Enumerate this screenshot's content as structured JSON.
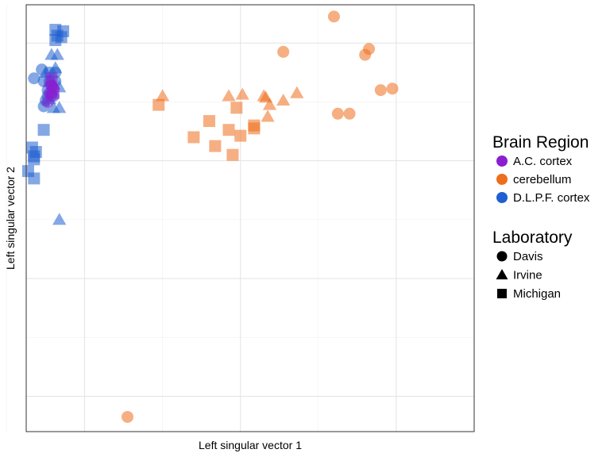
{
  "chart_data": {
    "type": "scatter",
    "xlabel": "Left singular vector 1",
    "ylabel": "Left singular vector 2",
    "x_ticks_labeled": false,
    "y_ticks_labeled": false,
    "xlim": [
      -0.35,
      0.8
    ],
    "ylim": [
      -0.72,
      0.73
    ],
    "grid": true,
    "legend_position": "right",
    "legends": {
      "color": {
        "title": "Brain Region",
        "entries": [
          {
            "label": "A.C. cortex",
            "color": "#8a1fd0"
          },
          {
            "label": "cerebellum",
            "color": "#ee6e1c"
          },
          {
            "label": "D.L.P.F. cortex",
            "color": "#1f5fcf"
          }
        ]
      },
      "shape": {
        "title": "Laboratory",
        "entries": [
          {
            "label": "Davis",
            "shape": "circle"
          },
          {
            "label": "Irvine",
            "shape": "triangle"
          },
          {
            "label": "Michigan",
            "shape": "square"
          }
        ]
      }
    },
    "series": [
      {
        "region": "cerebellum",
        "lab": "Davis",
        "points": [
          [
            0.44,
            0.69
          ],
          [
            0.53,
            0.58
          ],
          [
            0.52,
            0.56
          ],
          [
            0.31,
            0.57
          ],
          [
            0.56,
            0.44
          ],
          [
            0.59,
            0.445
          ],
          [
            0.45,
            0.36
          ],
          [
            0.48,
            0.36
          ],
          [
            -0.09,
            -0.67
          ]
        ]
      },
      {
        "region": "cerebellum",
        "lab": "Irvine",
        "points": [
          [
            0.0,
            0.42
          ],
          [
            0.17,
            0.42
          ],
          [
            0.205,
            0.425
          ],
          [
            0.26,
            0.42
          ],
          [
            0.265,
            0.415
          ],
          [
            0.275,
            0.39
          ],
          [
            0.27,
            0.35
          ],
          [
            0.31,
            0.405
          ],
          [
            0.345,
            0.43
          ]
        ]
      },
      {
        "region": "cerebellum",
        "lab": "Michigan",
        "points": [
          [
            -0.01,
            0.39
          ],
          [
            0.19,
            0.38
          ],
          [
            0.12,
            0.335
          ],
          [
            0.17,
            0.305
          ],
          [
            0.2,
            0.285
          ],
          [
            0.235,
            0.31
          ],
          [
            0.235,
            0.32
          ],
          [
            0.08,
            0.28
          ],
          [
            0.135,
            0.25
          ],
          [
            0.18,
            0.22
          ]
        ]
      },
      {
        "region": "D.L.P.F. cortex",
        "lab": "Davis",
        "points": [
          [
            -0.305,
            0.47
          ],
          [
            -0.285,
            0.455
          ],
          [
            -0.31,
            0.51
          ],
          [
            -0.29,
            0.5
          ],
          [
            -0.275,
            0.5
          ],
          [
            -0.295,
            0.44
          ],
          [
            -0.285,
            0.43
          ],
          [
            -0.3,
            0.405
          ],
          [
            -0.305,
            0.385
          ],
          [
            -0.28,
            0.42
          ],
          [
            -0.29,
            0.47
          ],
          [
            -0.33,
            0.48
          ],
          [
            -0.275,
            0.47
          ],
          [
            -0.295,
            0.42
          ]
        ]
      },
      {
        "region": "D.L.P.F. cortex",
        "lab": "Irvine",
        "points": [
          [
            -0.285,
            0.56
          ],
          [
            -0.27,
            0.56
          ],
          [
            -0.3,
            0.5
          ],
          [
            -0.275,
            0.515
          ],
          [
            -0.265,
            0.45
          ],
          [
            -0.28,
            0.38
          ],
          [
            -0.265,
            0.38
          ],
          [
            -0.29,
            0.41
          ],
          [
            -0.265,
            0.0
          ]
        ]
      },
      {
        "region": "D.L.P.F. cortex",
        "lab": "Michigan",
        "points": [
          [
            -0.275,
            0.645
          ],
          [
            -0.255,
            0.64
          ],
          [
            -0.27,
            0.625
          ],
          [
            -0.26,
            0.62
          ],
          [
            -0.275,
            0.61
          ],
          [
            -0.305,
            0.305
          ],
          [
            -0.335,
            0.245
          ],
          [
            -0.345,
            0.165
          ],
          [
            -0.33,
            0.14
          ],
          [
            -0.325,
            0.23
          ],
          [
            -0.33,
            0.215
          ],
          [
            -0.33,
            0.205
          ]
        ]
      },
      {
        "region": "A.C. cortex",
        "lab": "Davis",
        "points": [
          [
            -0.285,
            0.455
          ],
          [
            -0.29,
            0.43
          ],
          [
            -0.285,
            0.42
          ],
          [
            -0.295,
            0.4
          ],
          [
            -0.28,
            0.445
          ]
        ]
      },
      {
        "region": "A.C. cortex",
        "lab": "Irvine",
        "points": [
          [
            -0.29,
            0.47
          ],
          [
            -0.28,
            0.46
          ],
          [
            -0.285,
            0.44
          ]
        ]
      },
      {
        "region": "A.C. cortex",
        "lab": "Michigan",
        "points": [
          [
            -0.285,
            0.48
          ],
          [
            -0.28,
            0.43
          ]
        ]
      }
    ]
  }
}
